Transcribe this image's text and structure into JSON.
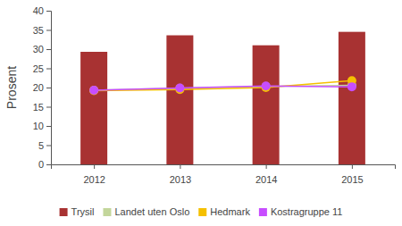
{
  "chart_data": {
    "type": "bar",
    "y_label": "Prosent",
    "categories": [
      "2012",
      "2013",
      "2014",
      "2015"
    ],
    "series": [
      {
        "name": "Trysil",
        "type": "bar",
        "color": "#a83232",
        "values": [
          29.3,
          33.6,
          31.0,
          34.5
        ]
      },
      {
        "name": "Landet uten Oslo",
        "type": "line",
        "marker": "circle",
        "color": "#c3d69b",
        "values": [
          19.3,
          19.8,
          20.3,
          20.6
        ]
      },
      {
        "name": "Hedmark",
        "type": "line",
        "marker": "circle",
        "color": "#f5c000",
        "values": [
          19.2,
          19.5,
          20.0,
          21.8
        ]
      },
      {
        "name": "Kostragruppe 11",
        "type": "line",
        "marker": "circle",
        "color": "#c74dff",
        "values": [
          19.3,
          19.9,
          20.4,
          20.2
        ]
      }
    ],
    "ylim": [
      0,
      40
    ],
    "yticks": [
      0,
      5,
      10,
      15,
      20,
      25,
      30,
      35,
      40
    ],
    "grid": false,
    "legend": "bottom"
  }
}
